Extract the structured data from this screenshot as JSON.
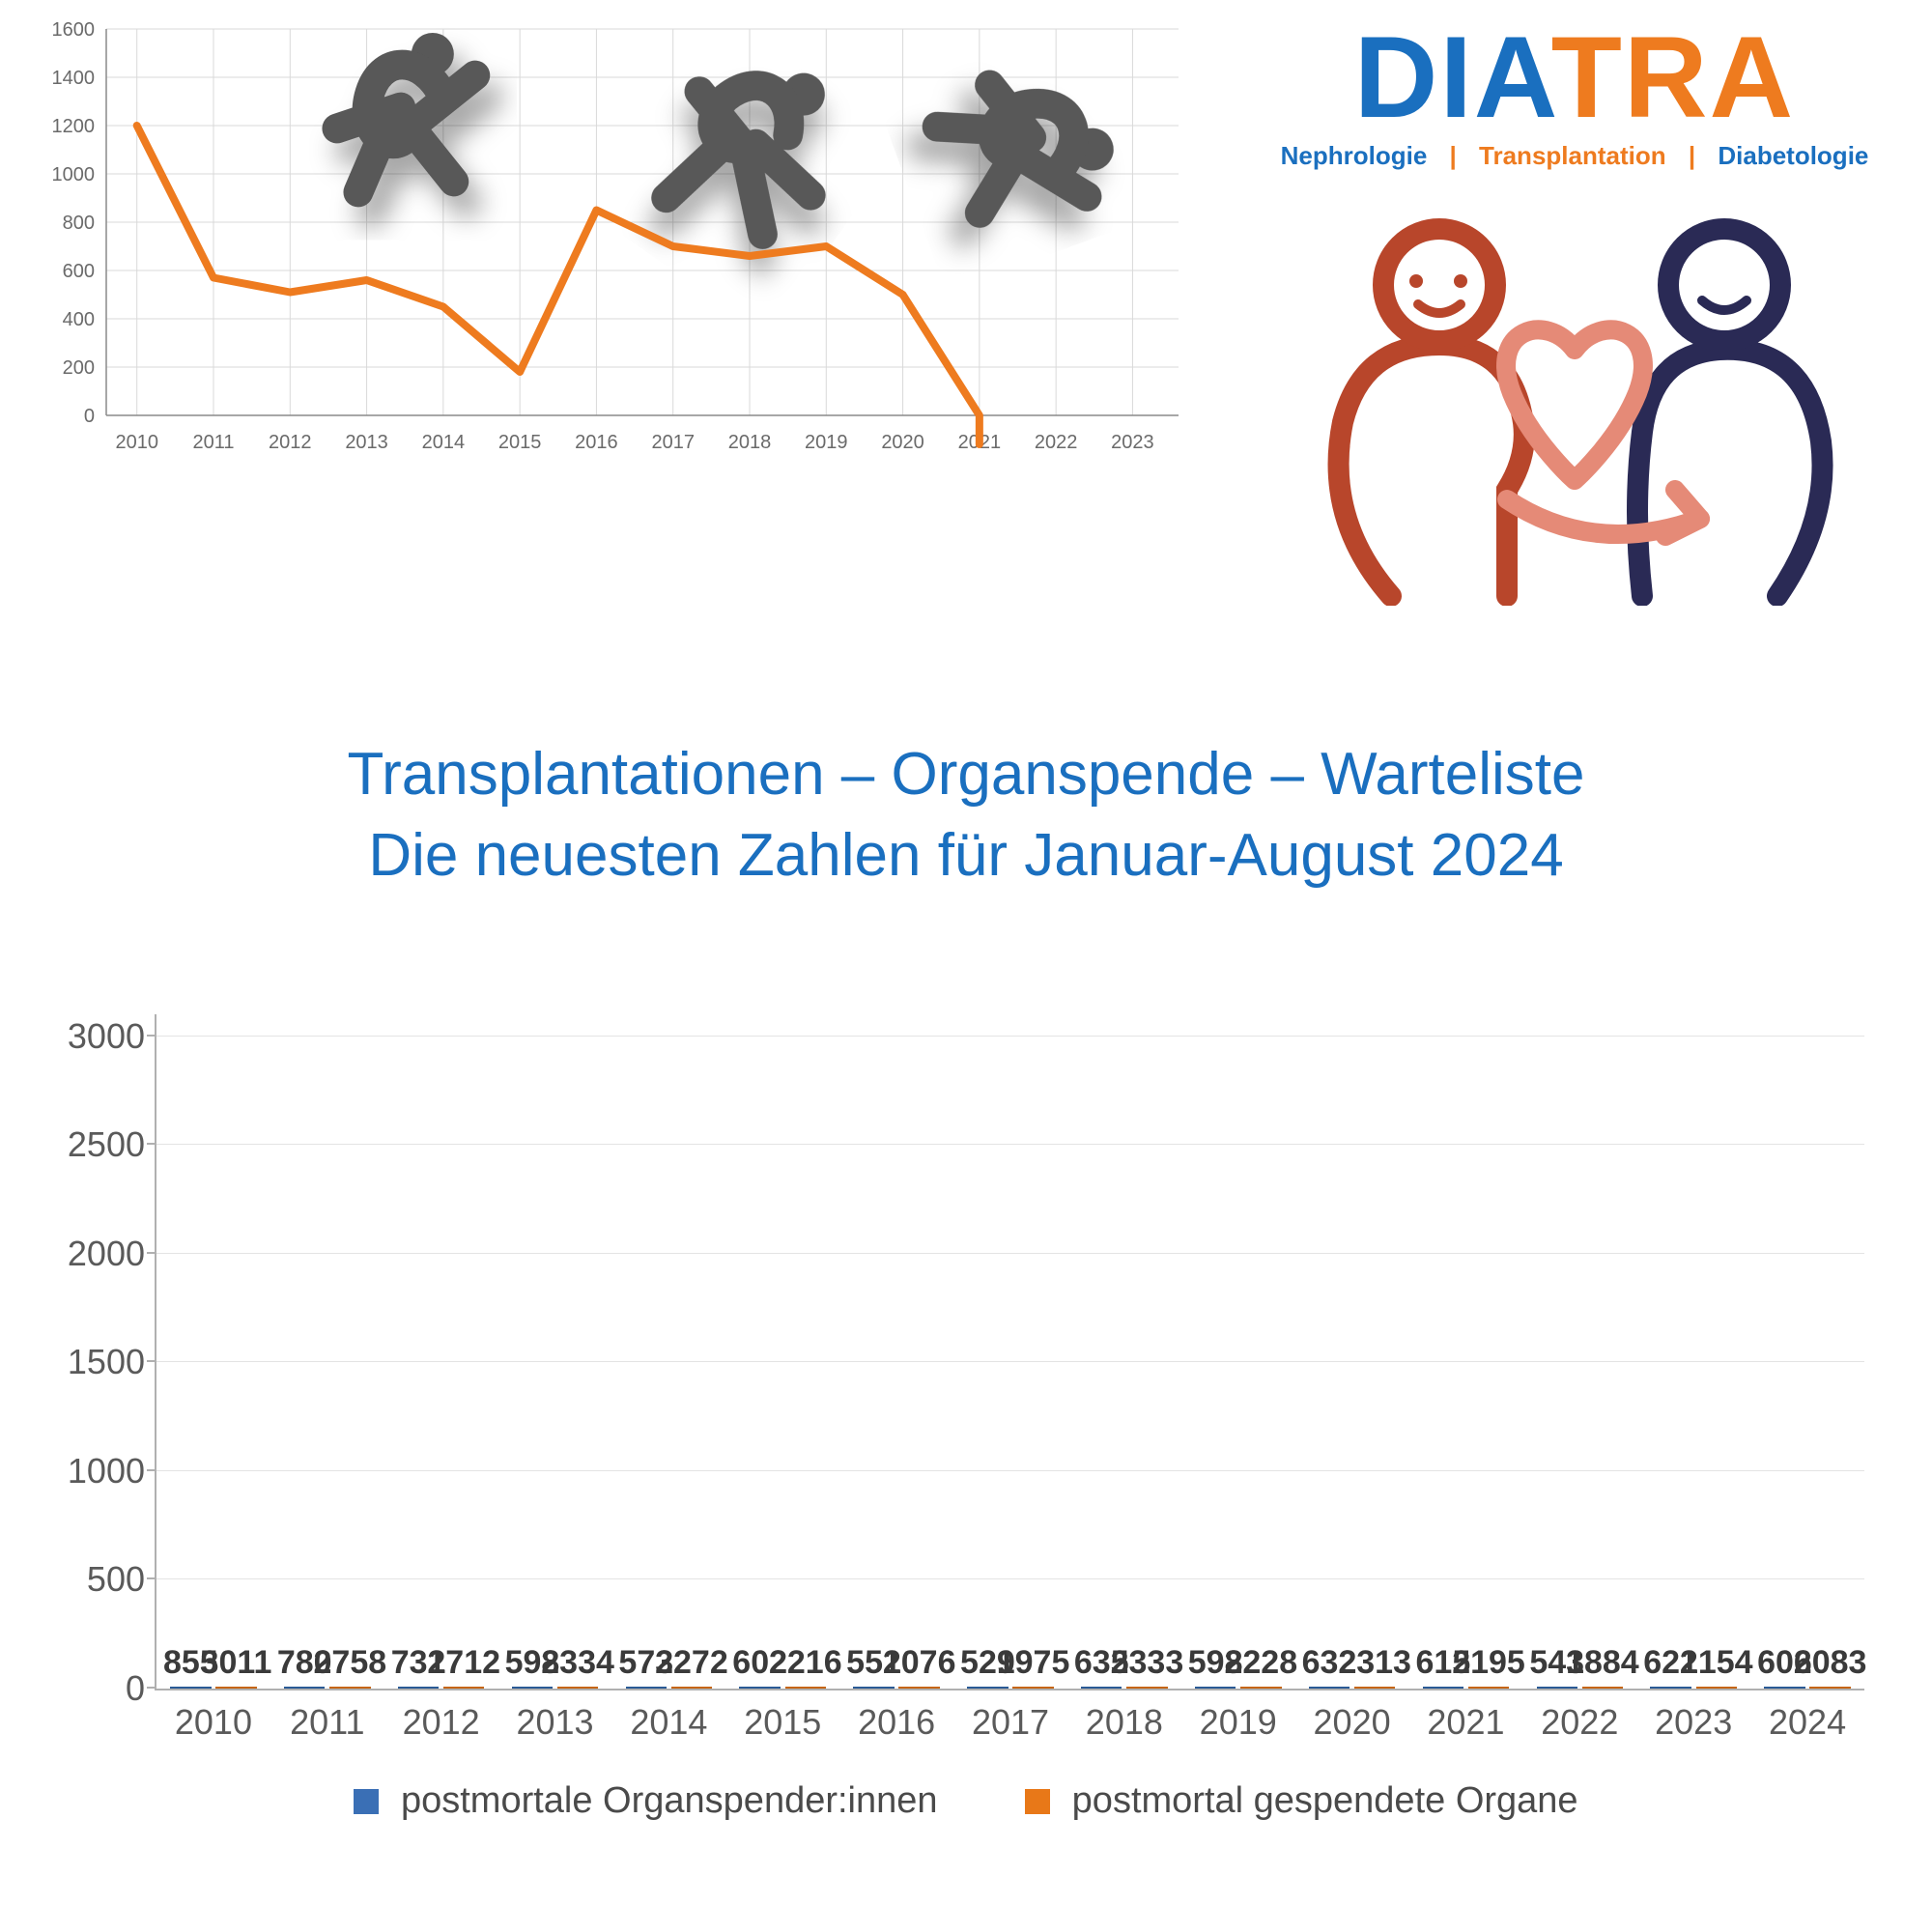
{
  "logo": {
    "word1": "DIA",
    "word2": "TRA",
    "sub_neph": "Nephrologie",
    "sub_trans": "Transplantation",
    "sub_diab": "Diabetologie",
    "sep": "|",
    "color_blue": "#1a6fbf",
    "color_orange": "#ee7b1f"
  },
  "headline": {
    "line1": "Transplantationen – Organspende – Warteliste",
    "line2": "Die neuesten Zahlen für Januar-August 2024",
    "color": "#1a6fbf",
    "fontsize": 62
  },
  "line_chart": {
    "type": "line",
    "years": [
      2010,
      2011,
      2012,
      2013,
      2014,
      2015,
      2016,
      2017,
      2018,
      2019,
      2020,
      2021,
      2022,
      2023
    ],
    "values": [
      1200,
      570,
      510,
      560,
      450,
      180,
      850,
      700,
      660,
      700,
      500,
      0,
      null,
      null
    ],
    "silhouettes_from_year": 2014,
    "ylim": [
      0,
      1600
    ],
    "ytick_step": 200,
    "line_color": "#ee7b1f",
    "line_width": 8,
    "grid_color": "#d9d9d9",
    "axis_color": "#8a8a8a",
    "label_color": "#6a6a6a",
    "label_fontsize": 20,
    "background_color": "#ffffff",
    "silhouette_color": "#585858"
  },
  "bar_chart": {
    "type": "grouped-bar",
    "years": [
      2010,
      2011,
      2012,
      2013,
      2014,
      2015,
      2016,
      2017,
      2018,
      2019,
      2020,
      2021,
      2022,
      2023,
      2024
    ],
    "series": [
      {
        "key": "donors",
        "label": "postmortale Organspender:innen",
        "color": "#3a6fb5",
        "values": [
          855,
          780,
          731,
          598,
          573,
          602,
          551,
          529,
          635,
          598,
          632,
          615,
          543,
          621,
          606
        ]
      },
      {
        "key": "organs",
        "label": "postmortal gespendete Organe",
        "color": "#e87818",
        "values": [
          3011,
          2758,
          2712,
          2334,
          2272,
          2216,
          2076,
          1975,
          2333,
          2228,
          2313,
          2195,
          1884,
          2154,
          2083
        ]
      }
    ],
    "ylim": [
      0,
      3100
    ],
    "yticks": [
      0,
      500,
      1000,
      1500,
      2000,
      2500,
      3000
    ],
    "value_label_fontsize": 34,
    "value_label_color": "#3a3a3a",
    "axis_label_fontsize": 36,
    "axis_label_color": "#5a5a5a",
    "axis_color": "#b0b0b0",
    "grid_color": "#e4e4e4",
    "legend_fontsize": 38,
    "bar_width_pct": 36,
    "background_color": "#ffffff"
  }
}
